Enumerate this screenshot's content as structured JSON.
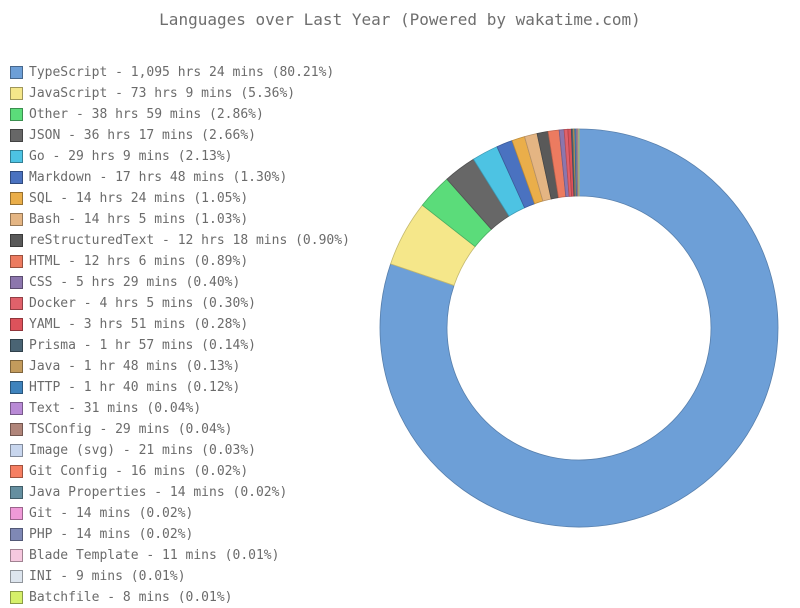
{
  "chart_data": {
    "type": "pie",
    "title": "Languages over Last Year (Powered by wakatime.com)",
    "donut": true,
    "legend_position": "left",
    "slices": [
      {
        "label": "TypeScript - 1,095 hrs 24 mins (80.21%)",
        "name": "TypeScript",
        "percent": 80.21,
        "color": "#6d9fd7"
      },
      {
        "label": "JavaScript - 73 hrs 9 mins (5.36%)",
        "name": "JavaScript",
        "percent": 5.36,
        "color": "#f5e78a"
      },
      {
        "label": "Other - 38 hrs 59 mins (2.86%)",
        "name": "Other",
        "percent": 2.86,
        "color": "#5bdc7a"
      },
      {
        "label": "JSON - 36 hrs 17 mins (2.66%)",
        "name": "JSON",
        "percent": 2.66,
        "color": "#676767"
      },
      {
        "label": "Go - 29 hrs 9 mins (2.13%)",
        "name": "Go",
        "percent": 2.13,
        "color": "#4dc3e3"
      },
      {
        "label": "Markdown - 17 hrs 48 mins (1.30%)",
        "name": "Markdown",
        "percent": 1.3,
        "color": "#4a72c0"
      },
      {
        "label": "SQL - 14 hrs 24 mins (1.05%)",
        "name": "SQL",
        "percent": 1.05,
        "color": "#eaae4a"
      },
      {
        "label": "Bash - 14 hrs 5 mins (1.03%)",
        "name": "Bash",
        "percent": 1.03,
        "color": "#e4b583"
      },
      {
        "label": "reStructuredText - 12 hrs 18 mins (0.90%)",
        "name": "reStructuredText",
        "percent": 0.9,
        "color": "#595959"
      },
      {
        "label": "HTML - 12 hrs 6 mins (0.89%)",
        "name": "HTML",
        "percent": 0.89,
        "color": "#ec7b60"
      },
      {
        "label": "CSS - 5 hrs 29 mins (0.40%)",
        "name": "CSS",
        "percent": 0.4,
        "color": "#8c76ad"
      },
      {
        "label": "Docker - 4 hrs 5 mins (0.30%)",
        "name": "Docker",
        "percent": 0.3,
        "color": "#e0616b"
      },
      {
        "label": "YAML - 3 hrs 51 mins (0.28%)",
        "name": "YAML",
        "percent": 0.28,
        "color": "#dd525b"
      },
      {
        "label": "Prisma - 1 hr 57 mins (0.14%)",
        "name": "Prisma",
        "percent": 0.14,
        "color": "#4a6474"
      },
      {
        "label": "Java - 1 hr 48 mins (0.13%)",
        "name": "Java",
        "percent": 0.13,
        "color": "#c39b5c"
      },
      {
        "label": "HTTP - 1 hr 40 mins (0.12%)",
        "name": "HTTP",
        "percent": 0.12,
        "color": "#3f83bd"
      },
      {
        "label": "Text - 31 mins (0.04%)",
        "name": "Text",
        "percent": 0.04,
        "color": "#b98ad6"
      },
      {
        "label": "TSConfig - 29 mins (0.04%)",
        "name": "TSConfig",
        "percent": 0.04,
        "color": "#b0857a"
      },
      {
        "label": "Image (svg) - 21 mins (0.03%)",
        "name": "Image (svg)",
        "percent": 0.03,
        "color": "#c8d6ee"
      },
      {
        "label": "Git Config - 16 mins (0.02%)",
        "name": "Git Config",
        "percent": 0.02,
        "color": "#f57e62"
      },
      {
        "label": "Java Properties - 14 mins (0.02%)",
        "name": "Java Properties",
        "percent": 0.02,
        "color": "#658fa0"
      },
      {
        "label": "Git - 14 mins (0.02%)",
        "name": "Git",
        "percent": 0.02,
        "color": "#ef9ad8"
      },
      {
        "label": "PHP - 14 mins (0.02%)",
        "name": "PHP",
        "percent": 0.02,
        "color": "#7f88b5"
      },
      {
        "label": "Blade Template - 11 mins (0.01%)",
        "name": "Blade Template",
        "percent": 0.01,
        "color": "#f6c8df"
      },
      {
        "label": "INI - 9 mins (0.01%)",
        "name": "INI",
        "percent": 0.01,
        "color": "#dde5ee"
      },
      {
        "label": "Batchfile - 8 mins (0.01%)",
        "name": "Batchfile",
        "percent": 0.01,
        "color": "#d6f06a"
      }
    ]
  }
}
